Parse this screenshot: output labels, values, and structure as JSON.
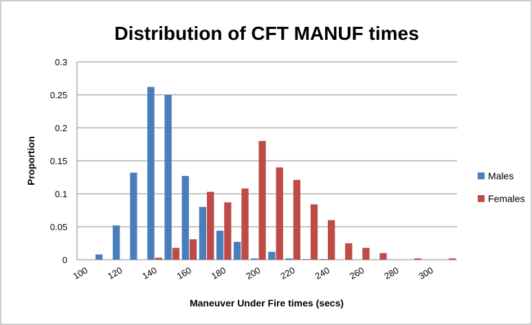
{
  "chart_data": {
    "type": "bar",
    "title": "Distribution of CFT MANUF times",
    "x_label": "Maneuver Under Fire times (secs)",
    "y_label": "Proportion",
    "categories": [
      "100",
      null,
      "120",
      null,
      "140",
      null,
      "160",
      null,
      "180",
      null,
      "200",
      null,
      "220",
      null,
      "240",
      null,
      "260",
      null,
      "280",
      null,
      "300",
      null
    ],
    "series": [
      {
        "name": "Males",
        "color": "#4a7ebb",
        "values": [
          0,
          0.008,
          0.052,
          0.132,
          0.262,
          0.25,
          0.127,
          0.08,
          0.044,
          0.027,
          0.002,
          0.012,
          0.002,
          0.001,
          0.001,
          0,
          0,
          0,
          0,
          0,
          0,
          0
        ]
      },
      {
        "name": "Females",
        "color": "#be4b48",
        "values": [
          0,
          0,
          0,
          0,
          0.003,
          0.018,
          0.031,
          0.103,
          0.087,
          0.108,
          0.18,
          0.14,
          0.121,
          0.084,
          0.06,
          0.025,
          0.018,
          0.01,
          0,
          0.002,
          0,
          0.002
        ]
      }
    ],
    "ylim": [
      0,
      0.3
    ],
    "yticks": [
      0,
      0.05,
      0.1,
      0.15,
      0.2,
      0.25,
      0.3
    ],
    "grid": true,
    "legend": "right"
  }
}
